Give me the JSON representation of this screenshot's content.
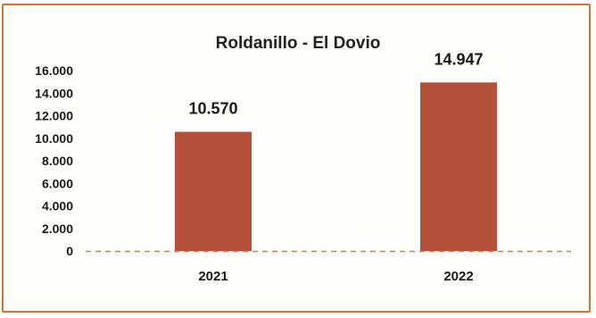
{
  "chart_data": {
    "type": "bar",
    "title": "Roldanillo - El Dovio",
    "categories": [
      "2021",
      "2022"
    ],
    "values": [
      10570,
      14947
    ],
    "data_labels": [
      "10.570",
      "14.947"
    ],
    "ylim": [
      0,
      16000
    ],
    "yticks": [
      {
        "value": 0,
        "label": "0"
      },
      {
        "value": 2000,
        "label": "2.000"
      },
      {
        "value": 4000,
        "label": "4.000"
      },
      {
        "value": 6000,
        "label": "6.000"
      },
      {
        "value": 8000,
        "label": "8.000"
      },
      {
        "value": 10000,
        "label": "10.000"
      },
      {
        "value": 12000,
        "label": "12.000"
      },
      {
        "value": 14000,
        "label": "14.000"
      },
      {
        "value": 16000,
        "label": "16.000"
      }
    ],
    "grid": false,
    "legend": "none",
    "bar_color": "#b5503a",
    "baseline_color": "#e07a3c"
  }
}
